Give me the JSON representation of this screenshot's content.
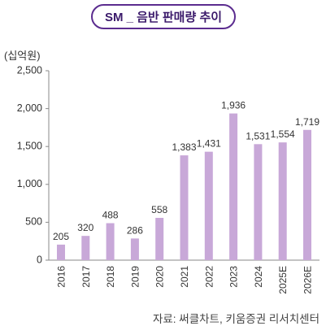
{
  "colors": {
    "bar": "#c8a8d8",
    "title_border": "#5b2c8f",
    "title_text": "#3b1a6b",
    "axis": "#8a8a8a"
  },
  "source": "자료: 써클차트, 키움증권 리서치센터",
  "chart_data": {
    "type": "bar",
    "title": "SM _ 음반 판매량 추이",
    "ylabel": "(십억원)",
    "categories": [
      "2016",
      "2017",
      "2018",
      "2019",
      "2020",
      "2021",
      "2022",
      "2023",
      "2024",
      "2025E",
      "2026E"
    ],
    "values": [
      205,
      320,
      488,
      286,
      558,
      1383,
      1431,
      1936,
      1531,
      1554,
      1719
    ],
    "ylim": [
      0,
      2500
    ],
    "yticks": [
      0,
      500,
      1000,
      1500,
      2000,
      2500
    ],
    "grid": false
  }
}
